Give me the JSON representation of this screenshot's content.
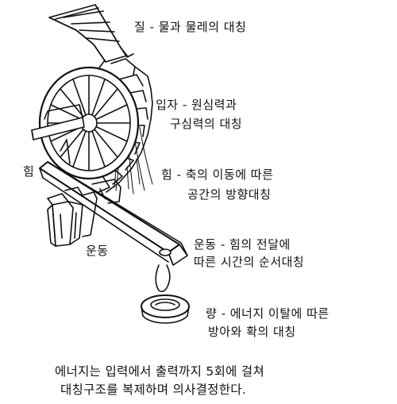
{
  "labels": {
    "quality": "질 - 물과 물레의 대칭",
    "particle_1": "입자 - 원심력과",
    "particle_2": "구심력의 대칭",
    "force_marker": "힘",
    "force_1": "힘 - 축의 이동에 따른",
    "force_2": "공간의 방향대칭",
    "motion_marker": "운동",
    "motion_1": "운동 - 힘의 전달에",
    "motion_2": "따른 시간의 순서대칭",
    "quantity_1": "량 - 에너지 이탈에 따른",
    "quantity_2": "방아와 확의 대칭"
  },
  "caption": {
    "line1": "에너지는 입력에서 출력까지 5회에 걸쳐",
    "line2": "대칭구조를 복제하며 의사결정한다."
  }
}
